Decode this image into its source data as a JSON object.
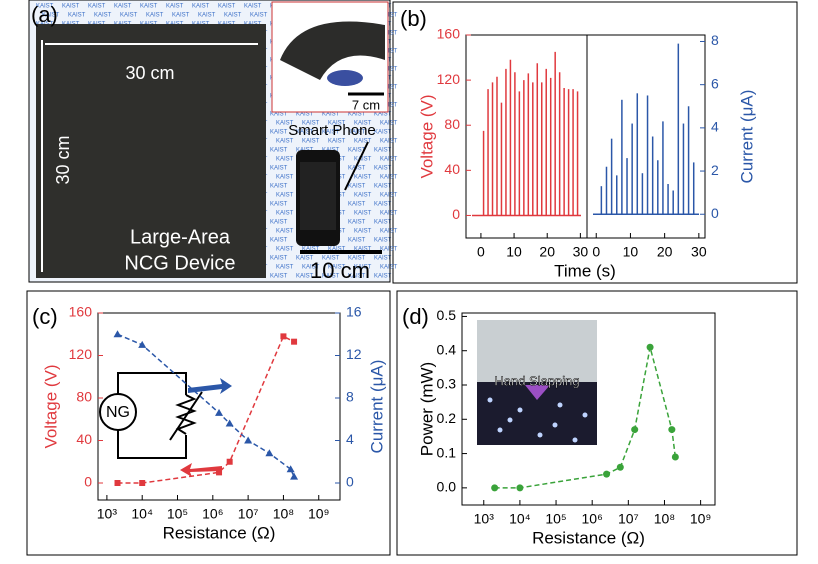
{
  "photo_panel": {
    "label": "(a)",
    "width_label": "30 cm",
    "height_label": "30 cm",
    "device_label": [
      "Large-Area",
      "NCG Device"
    ],
    "inset_scale": "7 cm",
    "phone_label": "Smart Phone",
    "phone_scale": "10 cm",
    "watermark": "KAIST"
  },
  "chart_data": [
    {
      "type": "stem",
      "label": "(b)",
      "xlabel": "Time (s)",
      "ylabel": "Voltage (V)",
      "color": "#e0393e",
      "ycolor": "#e0393e",
      "x": [
        0.8,
        2.15,
        3.5,
        4.85,
        6.2,
        7.55,
        8.9,
        10.25,
        11.6,
        12.95,
        14.3,
        15.65,
        17,
        18.35,
        19.7,
        21.05,
        22.4,
        23.75,
        25.1,
        26.45,
        27.8,
        29.15
      ],
      "values": [
        75,
        112,
        118,
        123,
        100,
        130,
        138,
        127,
        110,
        120,
        126,
        118,
        135,
        118,
        130,
        122,
        145,
        127,
        113,
        112,
        112,
        110
      ],
      "xlim": [
        -4.5,
        32
      ],
      "xticks": [
        0,
        10,
        20,
        30
      ],
      "ylim": [
        -20,
        160
      ],
      "yticks": [
        0,
        40,
        80,
        120,
        160
      ]
    },
    {
      "type": "stem",
      "ylabel": "Current (μA)",
      "color": "#2b57a8",
      "ycolor": "#2b57a8",
      "yside": "right",
      "x": [
        1.5,
        3,
        4.5,
        6,
        7.5,
        9,
        10.5,
        12,
        13.5,
        15,
        16.5,
        18,
        19.5,
        21,
        22.5,
        24,
        25.5,
        27,
        28.5
      ],
      "values": [
        1.3,
        2.2,
        3.5,
        1.8,
        5.3,
        2.6,
        4.2,
        5.6,
        1.9,
        5.5,
        3.6,
        2.5,
        4.3,
        1.4,
        1.1,
        7.9,
        4.2,
        5.0,
        2.4
      ],
      "xlim": [
        -2.7,
        31.8
      ],
      "xticks": [
        0,
        10,
        20,
        30
      ],
      "ylim": [
        -1.1,
        8.3
      ],
      "yticks": [
        0,
        2,
        4,
        6,
        8
      ]
    },
    {
      "type": "line",
      "label": "(c)",
      "xlabel": "Resistance (Ω)",
      "ylabel": "Voltage (V)",
      "y2label": "Current (μA)",
      "xlog": true,
      "ycolor": "#e0393e",
      "y2color": "#2b57a8",
      "inset_text": "NG",
      "xlim": [
        560,
        4000000000
      ],
      "xticks": [
        {
          "value": 1000,
          "label": "10³"
        },
        {
          "value": 10000,
          "label": "10⁴"
        },
        {
          "value": 100000,
          "label": "10⁵"
        },
        {
          "value": 1000000,
          "label": "10⁶"
        },
        {
          "value": 10000000,
          "label": "10⁷"
        },
        {
          "value": 100000000,
          "label": "10⁸"
        },
        {
          "value": 1000000000,
          "label": "10⁹"
        }
      ],
      "ylim": [
        -16,
        160
      ],
      "yticks": [
        0,
        40,
        80,
        120,
        160
      ],
      "y2lim": [
        -1.6,
        16
      ],
      "y2ticks": [
        0,
        4,
        8,
        12,
        16
      ],
      "series": [
        {
          "color": "#e0393e",
          "marker": "square",
          "dashed": true,
          "x": [
            2000,
            10000,
            1500000,
            3000000,
            100000000,
            200000000
          ],
          "values": [
            0,
            0,
            10,
            20,
            138,
            133
          ]
        },
        {
          "color": "#2b57a8",
          "marker": "triangle",
          "dashed": true,
          "axis": "y2",
          "x": [
            2000,
            10000,
            1500000,
            3000000,
            10000000,
            40000000,
            160000000,
            200000000
          ],
          "values": [
            14,
            13,
            6.6,
            5.6,
            4,
            2.8,
            1.3,
            0.6
          ]
        }
      ]
    },
    {
      "type": "line",
      "label": "(d)",
      "xlabel": "Resistance (Ω)",
      "ylabel": "Power (mW)",
      "xlog": true,
      "inset_text": "Hand Slapping",
      "xlim": [
        250,
        2500000000
      ],
      "xticks": [
        {
          "value": 1000,
          "label": "10³"
        },
        {
          "value": 10000,
          "label": "10⁴"
        },
        {
          "value": 100000,
          "label": "10⁵"
        },
        {
          "value": 1000000,
          "label": "10⁶"
        },
        {
          "value": 10000000,
          "label": "10⁷"
        },
        {
          "value": 100000000,
          "label": "10⁸"
        },
        {
          "value": 1000000000,
          "label": "10⁹"
        }
      ],
      "ylim": [
        -0.05,
        0.51
      ],
      "yticks": [
        {
          "value": 0,
          "label": "0.0"
        },
        0.1,
        0.2,
        0.3,
        0.4,
        0.5
      ],
      "series": [
        {
          "color": "#3aa33a",
          "marker": "circle",
          "dashed": true,
          "x": [
            2000,
            10000,
            2500000,
            6000000,
            15000000,
            40000000,
            160000000,
            200000000
          ],
          "values": [
            0,
            0,
            0.04,
            0.06,
            0.17,
            0.41,
            0.17,
            0.09
          ]
        }
      ]
    }
  ]
}
